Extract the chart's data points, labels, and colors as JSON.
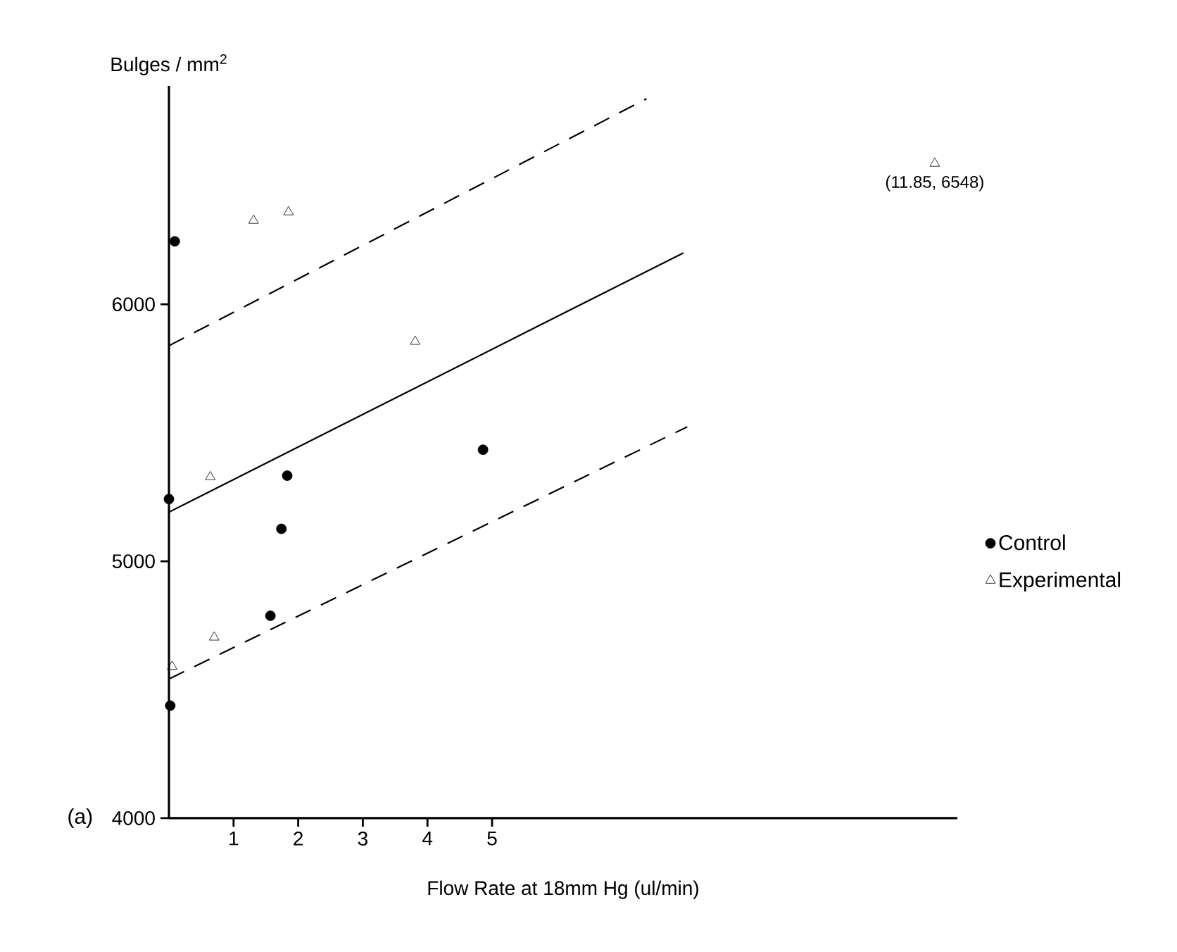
{
  "chart_data": {
    "type": "scatter",
    "ylabel": "Bulges / mm$^{2}$",
    "xlabel": "Flow Rate at 18mm Hg (ul/min)",
    "xlim": [
      0,
      12.2
    ],
    "ylim": [
      4000,
      6850
    ],
    "xticks": [
      1,
      2,
      3,
      4,
      5
    ],
    "yticks": [
      4000,
      5000,
      6000
    ],
    "legend": "right",
    "grid": false,
    "annotations": [
      "(a)",
      {
        "text": "(11.85, 6548)",
        "x": 11.85,
        "y": 6548
      }
    ],
    "series": [
      {
        "name": "Control",
        "color": "#000000",
        "marker": "circle",
        "x": [
          0.09,
          1.83,
          1.74,
          1.57,
          0.02,
          0.0,
          4.86
        ],
        "values": [
          6245,
          5333,
          5126,
          4788,
          4438,
          5242,
          5434
        ]
      },
      {
        "name": "Experimental",
        "color": "#000000",
        "marker": "triangle",
        "x": [
          1.31,
          1.85,
          3.81,
          0.64,
          0.7,
          0.05,
          11.85
        ],
        "values": [
          6326,
          6359,
          5855,
          5328,
          4704,
          4590,
          6548
        ]
      },
      {
        "type": "line",
        "color": "#000000",
        "line_style": "solid",
        "marker": "none",
        "x": [
          0,
          7.96
        ],
        "values": [
          5191,
          6200
        ]
      },
      {
        "type": "line",
        "color": "#000000",
        "line_style": "dashed",
        "marker": "none",
        "x": [
          0,
          7.39
        ],
        "values": [
          5839,
          6800
        ]
      },
      {
        "type": "line",
        "color": "#000000",
        "line_style": "dashed",
        "marker": "none",
        "x": [
          0,
          8.02
        ],
        "values": [
          4542,
          5523
        ]
      }
    ]
  }
}
